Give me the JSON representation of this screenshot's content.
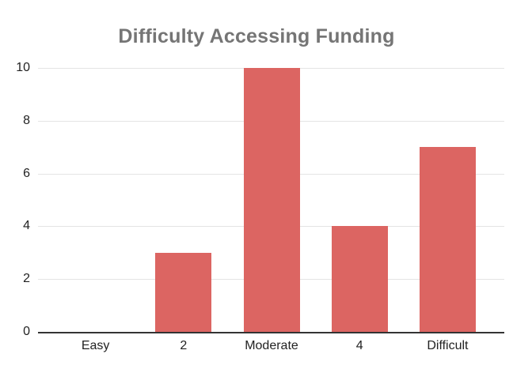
{
  "chart_data": {
    "type": "bar",
    "title": "Difficulty Accessing Funding",
    "categories": [
      "Easy",
      "2",
      "Moderate",
      "4",
      "Difficult"
    ],
    "values": [
      0,
      3,
      10,
      4,
      7
    ],
    "xlabel": "",
    "ylabel": "",
    "ylim": [
      0,
      10
    ],
    "yticks": [
      0,
      2,
      4,
      6,
      8,
      10
    ],
    "grid": true,
    "legend": "none",
    "colors": {
      "bar": "#DC6562",
      "title": "#757575",
      "axis_label": "#222222",
      "gridline": "#E4E4E4",
      "baseline": "#333333",
      "background": "#FFFFFF"
    }
  }
}
